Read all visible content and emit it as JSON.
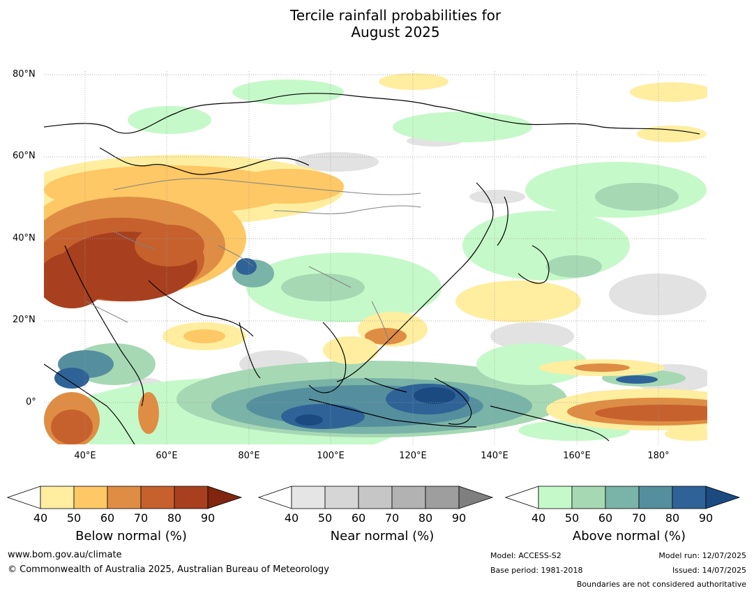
{
  "title_line1": "Tercile rainfall probabilities for",
  "title_line2": "August 2025",
  "map": {
    "lat_labels": [
      "80°N",
      "60°N",
      "40°N",
      "20°N",
      "0°"
    ],
    "lon_labels": [
      "40°E",
      "60°E",
      "80°E",
      "100°E",
      "120°E",
      "140°E",
      "160°E",
      "180°"
    ],
    "extent": {
      "lon_min": 30,
      "lon_max": 192,
      "lat_min": -10,
      "lat_max": 81
    }
  },
  "colorbars": [
    {
      "title": "Below normal (%)",
      "ticks": [
        "40",
        "50",
        "60",
        "70",
        "80",
        "90"
      ],
      "colors": [
        "#ffeea0",
        "#fdc865",
        "#df8d44",
        "#c6612e",
        "#a8401f",
        "#7f2510"
      ]
    },
    {
      "title": "Near normal (%)",
      "ticks": [
        "40",
        "50",
        "60",
        "70",
        "80",
        "90"
      ],
      "colors": [
        "#e5e5e5",
        "#d6d6d6",
        "#c6c6c6",
        "#b2b2b2",
        "#9e9e9e",
        "#7f7f7f"
      ]
    },
    {
      "title": "Above normal (%)",
      "ticks": [
        "40",
        "50",
        "60",
        "70",
        "80",
        "90"
      ],
      "colors": [
        "#c6f9c9",
        "#a6d8b4",
        "#7ab3a7",
        "#558f9e",
        "#2f6397",
        "#1b4a80"
      ]
    }
  ],
  "footer": {
    "website": "www.bom.gov.au/climate",
    "copyright": "© Commonwealth of Australia 2025, Australian Bureau of Meteorology",
    "model": "Model: ACCESS-S2",
    "base_period": "Base period: 1981-2018",
    "model_run": "Model run: 12/07/2025",
    "issued": "Issued: 14/07/2025",
    "disclaimer": "Boundaries are not considered authoritative"
  }
}
